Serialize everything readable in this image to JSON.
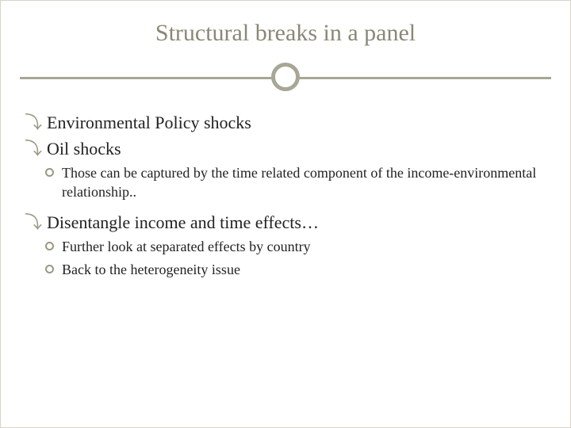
{
  "title": "Structural breaks in a panel",
  "colors": {
    "title_text": "#8a8875",
    "divider": "#a8a695",
    "bullet_l1": "#9a9884",
    "bullet_l2_border": "#9a9884",
    "body_text": "#222222",
    "background": "#ffffff",
    "slide_border": "#d9d4c8"
  },
  "typography": {
    "title_fontsize": 30,
    "l1_fontsize": 22,
    "l2_fontsize": 18,
    "font_family": "Georgia, serif"
  },
  "l1_bullet_glyph": "⤵",
  "items": [
    {
      "level": 1,
      "text": "Environmental Policy shocks"
    },
    {
      "level": 1,
      "text": "Oil shocks"
    },
    {
      "level": 2,
      "text": "Those can be captured by the time related component of the income-environmental relationship.."
    },
    {
      "level": 1,
      "text": "Disentangle income and time effects…"
    },
    {
      "level": 2,
      "text": "Further look at separated effects by country"
    },
    {
      "level": 2,
      "text": "Back to the heterogeneity issue"
    }
  ]
}
